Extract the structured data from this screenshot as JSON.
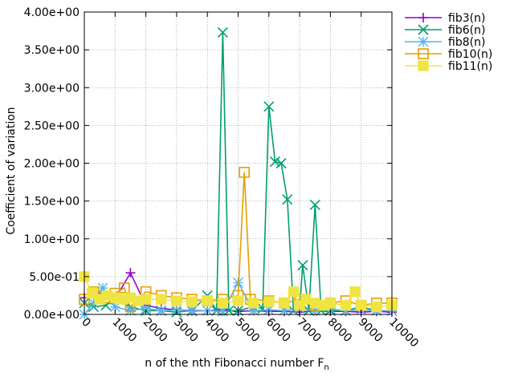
{
  "chart_data": {
    "type": "line",
    "xlabel": "n of the nth Fibonacci number F",
    "xlabel_sub": "n",
    "ylabel": "Coefficient of variation",
    "xlim": [
      0,
      10000
    ],
    "ylim": [
      0,
      4
    ],
    "x_ticks": [
      0,
      1000,
      2000,
      3000,
      4000,
      5000,
      6000,
      7000,
      8000,
      9000,
      10000
    ],
    "x_tick_labels": [
      "0",
      "1000",
      "2000",
      "3000",
      "4000",
      "5000",
      "6000",
      "7000",
      "8000",
      "9000",
      "10000"
    ],
    "y_ticks": [
      0,
      0.5,
      1,
      1.5,
      2,
      2.5,
      3,
      3.5,
      4
    ],
    "y_tick_labels": [
      "0.00e+00",
      "5.00e-01",
      "1.00e+00",
      "1.50e+00",
      "2.00e+00",
      "2.50e+00",
      "3.00e+00",
      "3.50e+00",
      "4.00e+00"
    ],
    "grid": true,
    "legend_position": "outside-right",
    "series": [
      {
        "name": "fib3(n)",
        "color": "#9400d3",
        "marker": "plus",
        "x": [
          0,
          500,
          1000,
          1500,
          2000,
          2500,
          3000,
          3500,
          4000,
          4500,
          5000,
          5500,
          6000,
          6500,
          7000,
          7500,
          8000,
          8500,
          9000,
          9500,
          10000
        ],
        "y": [
          0.22,
          0.25,
          0.2,
          0.55,
          0.12,
          0.08,
          0.06,
          0.05,
          0.05,
          0.06,
          0.04,
          0.05,
          0.04,
          0.04,
          0.03,
          0.05,
          0.04,
          0.04,
          0.03,
          0.04,
          0.03
        ]
      },
      {
        "name": "fib6(n)",
        "color": "#009e73",
        "marker": "x",
        "x": [
          0,
          300,
          700,
          1000,
          1500,
          2000,
          2500,
          3000,
          3500,
          4000,
          4300,
          4500,
          4700,
          5000,
          5500,
          5800,
          6000,
          6200,
          6400,
          6600,
          6800,
          7000,
          7100,
          7300,
          7500,
          7700,
          8000,
          8500,
          9000,
          9500,
          10000
        ],
        "y": [
          0.15,
          0.1,
          0.12,
          0.2,
          0.1,
          0.05,
          0.05,
          0.03,
          0.05,
          0.25,
          0.05,
          3.73,
          0.05,
          0.05,
          0.1,
          0.08,
          2.75,
          2.02,
          2.0,
          1.52,
          0.05,
          0.08,
          0.65,
          0.05,
          1.45,
          0.05,
          0.05,
          0.05,
          0.1,
          0.05,
          0.05
        ]
      },
      {
        "name": "fib8(n)",
        "color": "#56b4e9",
        "marker": "star",
        "x": [
          0,
          300,
          600,
          1000,
          1500,
          2000,
          2500,
          3000,
          3500,
          4000,
          4500,
          5000,
          5500,
          6000,
          6500,
          7000,
          7500,
          8000,
          8500,
          9000,
          9500,
          10000
        ],
        "y": [
          0.0,
          0.15,
          0.35,
          0.1,
          0.05,
          0.08,
          0.05,
          0.06,
          0.04,
          0.05,
          0.04,
          0.42,
          0.05,
          0.06,
          0.05,
          0.08,
          0.05,
          0.07,
          0.05,
          0.06,
          0.05,
          0.05
        ]
      },
      {
        "name": "fib10(n)",
        "color": "#e69f00",
        "marker": "square",
        "x": [
          0,
          300,
          700,
          1000,
          1300,
          1500,
          2000,
          2500,
          3000,
          3500,
          4000,
          4500,
          5000,
          5200,
          5400,
          6000,
          6500,
          7000,
          7500,
          8000,
          8500,
          9000,
          9500,
          10000
        ],
        "y": [
          0.2,
          0.3,
          0.22,
          0.28,
          0.35,
          0.1,
          0.3,
          0.25,
          0.22,
          0.2,
          0.18,
          0.2,
          0.25,
          1.88,
          0.2,
          0.18,
          0.15,
          0.2,
          0.12,
          0.15,
          0.18,
          0.12,
          0.15,
          0.15
        ]
      },
      {
        "name": "fib11(n)",
        "color": "#f0e442",
        "marker": "filled-square",
        "x": [
          0,
          250,
          500,
          750,
          1000,
          1250,
          1500,
          1750,
          2000,
          2500,
          3000,
          3500,
          4000,
          4500,
          5000,
          5500,
          6000,
          6500,
          6800,
          7000,
          7200,
          7500,
          7800,
          8000,
          8500,
          8800,
          9000,
          9500,
          10000
        ],
        "y": [
          0.5,
          0.28,
          0.2,
          0.25,
          0.22,
          0.2,
          0.22,
          0.18,
          0.2,
          0.2,
          0.18,
          0.17,
          0.18,
          0.15,
          0.18,
          0.15,
          0.17,
          0.15,
          0.3,
          0.12,
          0.2,
          0.15,
          0.12,
          0.15,
          0.12,
          0.3,
          0.12,
          0.1,
          0.12
        ]
      }
    ]
  }
}
